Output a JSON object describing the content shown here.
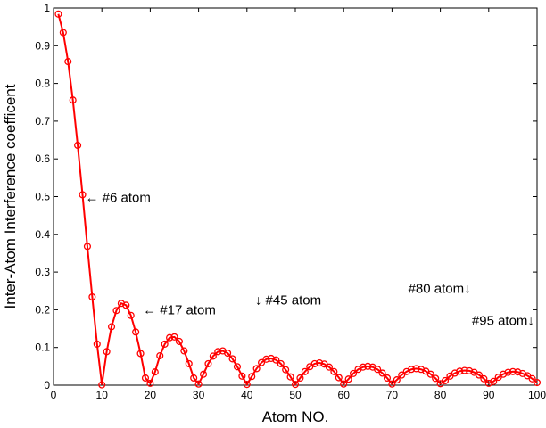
{
  "chart_data": {
    "type": "line",
    "title": "",
    "xlabel": "Atom NO.",
    "ylabel": "Inter-Atom Interference coefficent",
    "xlim": [
      0,
      100
    ],
    "ylim": [
      0,
      1
    ],
    "xticks": [
      0,
      10,
      20,
      30,
      40,
      50,
      60,
      70,
      80,
      90,
      100
    ],
    "yticks": [
      0,
      0.1,
      0.2,
      0.3,
      0.4,
      0.5,
      0.6,
      0.7,
      0.8,
      0.9,
      1
    ],
    "xtick_labels": [
      "0",
      "10",
      "20",
      "30",
      "40",
      "50",
      "60",
      "70",
      "80",
      "90",
      "100"
    ],
    "ytick_labels": [
      "0",
      "0.1",
      "0.2",
      "0.3",
      "0.4",
      "0.5",
      "0.6",
      "0.7",
      "0.8",
      "0.9",
      "1"
    ],
    "grid": false,
    "legend": "none",
    "series": [
      {
        "color": "#ff0000",
        "marker": "open-circle",
        "x": [
          1,
          2,
          3,
          4,
          5,
          6,
          7,
          8,
          9,
          10,
          11,
          12,
          13,
          14,
          15,
          16,
          17,
          18,
          19,
          20,
          21,
          22,
          23,
          24,
          25,
          26,
          27,
          28,
          29,
          30,
          31,
          32,
          33,
          34,
          35,
          36,
          37,
          38,
          39,
          40,
          41,
          42,
          43,
          44,
          45,
          46,
          47,
          48,
          49,
          50,
          51,
          52,
          53,
          54,
          55,
          56,
          57,
          58,
          59,
          60,
          61,
          62,
          63,
          64,
          65,
          66,
          67,
          68,
          69,
          70,
          71,
          72,
          73,
          74,
          75,
          76,
          77,
          78,
          79,
          80,
          81,
          82,
          83,
          84,
          85,
          86,
          87,
          88,
          89,
          90,
          91,
          92,
          93,
          94,
          95,
          96,
          97,
          98,
          99,
          100
        ],
        "y": [
          0.984,
          0.935,
          0.858,
          0.756,
          0.636,
          0.505,
          0.368,
          0.234,
          0.109,
          0.001,
          0.089,
          0.155,
          0.198,
          0.217,
          0.212,
          0.185,
          0.141,
          0.084,
          0.019,
          0.005,
          0.035,
          0.078,
          0.109,
          0.126,
          0.128,
          0.116,
          0.091,
          0.057,
          0.019,
          0.003,
          0.029,
          0.057,
          0.077,
          0.089,
          0.091,
          0.085,
          0.07,
          0.049,
          0.024,
          0.002,
          0.023,
          0.044,
          0.06,
          0.069,
          0.071,
          0.067,
          0.057,
          0.041,
          0.022,
          0.002,
          0.019,
          0.036,
          0.049,
          0.057,
          0.059,
          0.056,
          0.048,
          0.036,
          0.02,
          0.003,
          0.016,
          0.031,
          0.042,
          0.048,
          0.05,
          0.048,
          0.042,
          0.032,
          0.019,
          0.003,
          0.014,
          0.027,
          0.036,
          0.042,
          0.044,
          0.042,
          0.037,
          0.029,
          0.018,
          0.004,
          0.012,
          0.024,
          0.032,
          0.037,
          0.039,
          0.038,
          0.034,
          0.027,
          0.017,
          0.005,
          0.01,
          0.021,
          0.029,
          0.034,
          0.036,
          0.035,
          0.031,
          0.025,
          0.017,
          0.007
        ]
      }
    ],
    "annotations": [
      {
        "text": "← #6 atom",
        "x": 6,
        "y": 0.505
      },
      {
        "text": "← #17 atom",
        "x": 17,
        "y": 0.2
      },
      {
        "text": "↓ #45 atom",
        "x": 45,
        "y": 0.2
      },
      {
        "text": "#80 atom↓",
        "x": 80,
        "y": 0.15
      },
      {
        "text": "#95 atom↓",
        "x": 95,
        "y": 0.1
      }
    ]
  }
}
